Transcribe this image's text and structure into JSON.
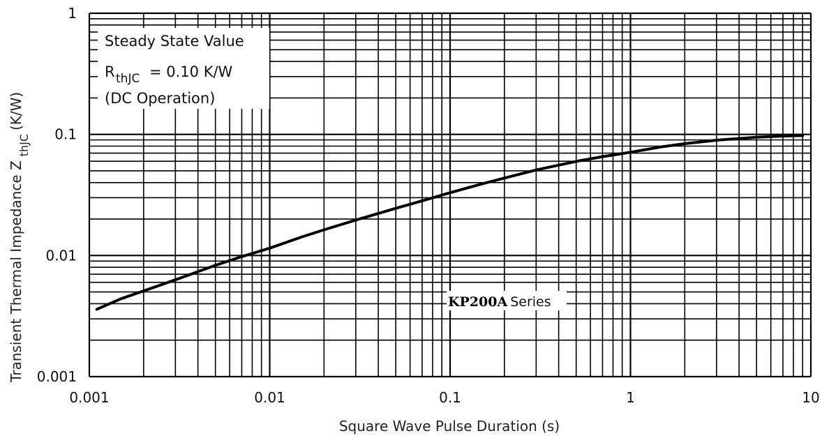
{
  "chart_data": {
    "type": "line",
    "xscale": "log",
    "yscale": "log",
    "xlim": [
      0.001,
      10
    ],
    "ylim": [
      0.001,
      1
    ],
    "grid": true,
    "xlabel": "Square Wave Pulse Duration (s)",
    "ylabel_main": "Transient Thermal Impedance Z",
    "ylabel_sub": "thJC",
    "ylabel_unit": "(K/W)",
    "xticks": [
      "0.001",
      "0.01",
      "0.1",
      "1",
      "10"
    ],
    "yticks": [
      "0.001",
      "0.01",
      "0.1",
      "1"
    ],
    "series": [
      {
        "x": [
          0.0011,
          0.0015,
          0.002,
          0.003,
          0.005,
          0.007,
          0.01,
          0.015,
          0.02,
          0.03,
          0.05,
          0.07,
          0.1,
          0.15,
          0.2,
          0.3,
          0.5,
          0.7,
          1,
          1.5,
          2,
          3,
          5,
          7,
          9
        ],
        "y": [
          0.0036,
          0.0044,
          0.0051,
          0.0063,
          0.0083,
          0.0098,
          0.0115,
          0.0142,
          0.0163,
          0.0196,
          0.0245,
          0.0283,
          0.033,
          0.039,
          0.0436,
          0.0508,
          0.0598,
          0.0655,
          0.0712,
          0.079,
          0.0838,
          0.0895,
          0.0948,
          0.0968,
          0.0977
        ]
      }
    ],
    "annotations": {
      "steady_state_title": "Steady State Value",
      "rth_symbol": "R",
      "rth_sub": "thJC",
      "rth_value": "= 0.10 K/W",
      "dc_operation": "(DC Operation)",
      "series_label_bold": "KP200A",
      "series_label_rest": "Series"
    }
  }
}
